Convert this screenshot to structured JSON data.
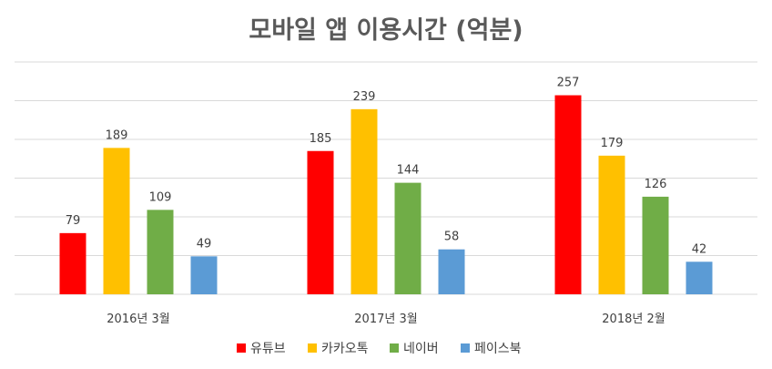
{
  "chart_data": {
    "type": "bar",
    "title": "모바일 앱 이용시간 (억분)",
    "categories": [
      "2016년 3월",
      "2017년 3월",
      "2018년 2월"
    ],
    "series": [
      {
        "name": "유튜브",
        "color": "#ff0000",
        "values": [
          79,
          185,
          257
        ]
      },
      {
        "name": "카카오톡",
        "color": "#ffc000",
        "values": [
          189,
          239,
          179
        ]
      },
      {
        "name": "네이버",
        "color": "#70ad47",
        "values": [
          109,
          144,
          126
        ]
      },
      {
        "name": "페이스북",
        "color": "#5b9bd5",
        "values": [
          49,
          58,
          42
        ]
      }
    ],
    "ylim": [
      0,
      300
    ],
    "grid": true,
    "yticks_visible": false,
    "legend": "bottom"
  }
}
